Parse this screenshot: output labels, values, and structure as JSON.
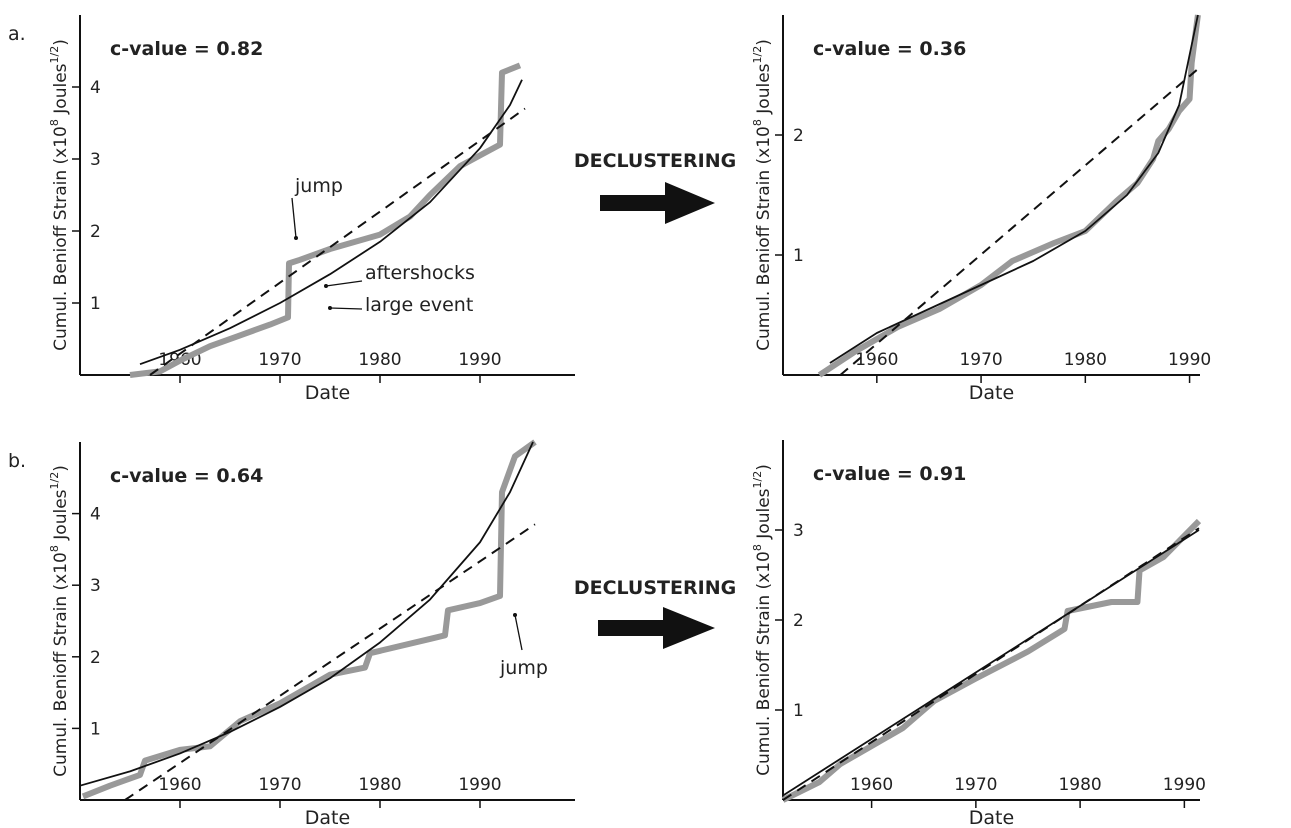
{
  "figure": {
    "panel_labels": [
      "a.",
      "b."
    ],
    "arrow_labels": [
      "DECLUSTERING",
      "DECLUSTERING"
    ]
  },
  "chart_data": [
    {
      "type": "line",
      "subtitle": "c-value = 0.82",
      "xlabel": "Date",
      "ylabel": [
        "Cumul. Benioff Strain (x10",
        "8",
        " Joules",
        "1/2",
        ")"
      ],
      "xlim": [
        1950,
        1999.5
      ],
      "ylim": [
        0,
        5
      ],
      "xticks": [
        1960,
        1970,
        1980,
        1990
      ],
      "yticks": [
        1,
        2,
        3,
        4
      ],
      "annotations": [
        "jump",
        "aftershocks",
        "large event"
      ],
      "series": [
        {
          "style": "data",
          "color": "#999999",
          "x": [
            1955,
            1958,
            1960,
            1963,
            1966,
            1969,
            1970.8,
            1970.9,
            1972,
            1975,
            1980,
            1983,
            1985,
            1988,
            1990,
            1992,
            1992.2,
            1994
          ],
          "values": [
            0,
            0.05,
            0.2,
            0.4,
            0.55,
            0.7,
            0.8,
            1.55,
            1.6,
            1.75,
            1.95,
            2.2,
            2.5,
            2.9,
            3.05,
            3.2,
            4.2,
            4.3
          ]
        },
        {
          "style": "solid",
          "color": "#111111",
          "x": [
            1956,
            1960,
            1965,
            1970,
            1975,
            1980,
            1985,
            1990,
            1993,
            1994.2
          ],
          "values": [
            0.15,
            0.35,
            0.65,
            1.0,
            1.4,
            1.85,
            2.4,
            3.15,
            3.75,
            4.1
          ]
        },
        {
          "style": "dashed",
          "color": "#111111",
          "x": [
            1957,
            1994.5
          ],
          "values": [
            0,
            3.7
          ]
        }
      ]
    },
    {
      "type": "line",
      "subtitle": "c-value = 0.36",
      "xlabel": "Date",
      "ylabel": [
        "Cumul. Benioff Strain (x10",
        "8",
        " Joules",
        "1/2",
        ")"
      ],
      "xlim": [
        1951,
        1991
      ],
      "ylim": [
        0,
        3
      ],
      "xticks": [
        1960,
        1970,
        1980,
        1990
      ],
      "yticks": [
        1,
        2
      ],
      "series": [
        {
          "style": "data",
          "color": "#999999",
          "x": [
            1954.5,
            1958,
            1962,
            1966,
            1970,
            1973,
            1977,
            1980,
            1983,
            1985,
            1986.5,
            1987,
            1988,
            1989,
            1990,
            1990.2,
            1990.8
          ],
          "values": [
            0,
            0.2,
            0.4,
            0.55,
            0.75,
            0.95,
            1.1,
            1.2,
            1.45,
            1.6,
            1.8,
            1.95,
            2.05,
            2.2,
            2.3,
            2.6,
            3.0
          ]
        },
        {
          "style": "solid",
          "color": "#111111",
          "x": [
            1955.5,
            1960,
            1965,
            1970,
            1975,
            1980,
            1984,
            1987,
            1989,
            1990.8
          ],
          "values": [
            0.1,
            0.35,
            0.55,
            0.75,
            0.95,
            1.2,
            1.5,
            1.85,
            2.25,
            3.0
          ]
        },
        {
          "style": "dashed",
          "color": "#111111",
          "x": [
            1956.5,
            1990.8
          ],
          "values": [
            0,
            2.55
          ]
        }
      ]
    },
    {
      "type": "line",
      "subtitle": "c-value = 0.64",
      "xlabel": "Date",
      "ylabel": [
        "Cumul. Benioff Strain (x10",
        "8",
        " Joules",
        "1/2",
        ")"
      ],
      "xlim": [
        1950,
        1999.5
      ],
      "ylim": [
        0,
        5
      ],
      "xticks": [
        1960,
        1970,
        1980,
        1990
      ],
      "yticks": [
        1,
        2,
        3,
        4
      ],
      "annotations": [
        "jump"
      ],
      "series": [
        {
          "style": "data",
          "color": "#999999",
          "x": [
            1950.3,
            1953,
            1956,
            1956.5,
            1960,
            1963,
            1966,
            1970,
            1975,
            1978.5,
            1979,
            1985,
            1986.5,
            1986.8,
            1990,
            1992,
            1992.2,
            1993.5,
            1995.5
          ],
          "values": [
            0.05,
            0.2,
            0.35,
            0.55,
            0.7,
            0.75,
            1.1,
            1.35,
            1.75,
            1.85,
            2.05,
            2.25,
            2.3,
            2.65,
            2.75,
            2.85,
            4.3,
            4.8,
            5.0
          ]
        },
        {
          "style": "solid",
          "color": "#111111",
          "x": [
            1950,
            1955,
            1960,
            1965,
            1970,
            1975,
            1980,
            1985,
            1990,
            1993,
            1995.3
          ],
          "values": [
            0.2,
            0.4,
            0.65,
            0.95,
            1.3,
            1.7,
            2.2,
            2.8,
            3.6,
            4.3,
            5.0
          ]
        },
        {
          "style": "dashed",
          "color": "#111111",
          "x": [
            1954.5,
            1995.5
          ],
          "values": [
            0,
            3.85
          ]
        }
      ]
    },
    {
      "type": "line",
      "subtitle": "c-value = 0.91",
      "xlabel": "Date",
      "ylabel": [
        "Cumul. Benioff Strain (x10",
        "8",
        " Joules",
        "1/2",
        ")"
      ],
      "xlim": [
        1951.5,
        1991.5
      ],
      "ylim": [
        0,
        4
      ],
      "xticks": [
        1960,
        1970,
        1980,
        1990
      ],
      "yticks": [
        1,
        2,
        3
      ],
      "series": [
        {
          "style": "data",
          "color": "#999999",
          "x": [
            1951.5,
            1955,
            1957,
            1960,
            1963,
            1966,
            1970,
            1975,
            1978.5,
            1978.8,
            1983,
            1985.5,
            1985.7,
            1988,
            1991.4
          ],
          "values": [
            0,
            0.2,
            0.4,
            0.6,
            0.8,
            1.1,
            1.35,
            1.65,
            1.9,
            2.1,
            2.2,
            2.2,
            2.55,
            2.7,
            3.1
          ]
        },
        {
          "style": "solid",
          "color": "#111111",
          "x": [
            1951.5,
            1991.4
          ],
          "values": [
            0.05,
            3.0
          ]
        },
        {
          "style": "dashed",
          "color": "#111111",
          "x": [
            1951.5,
            1991.4
          ],
          "values": [
            0,
            3.02
          ]
        }
      ]
    }
  ]
}
